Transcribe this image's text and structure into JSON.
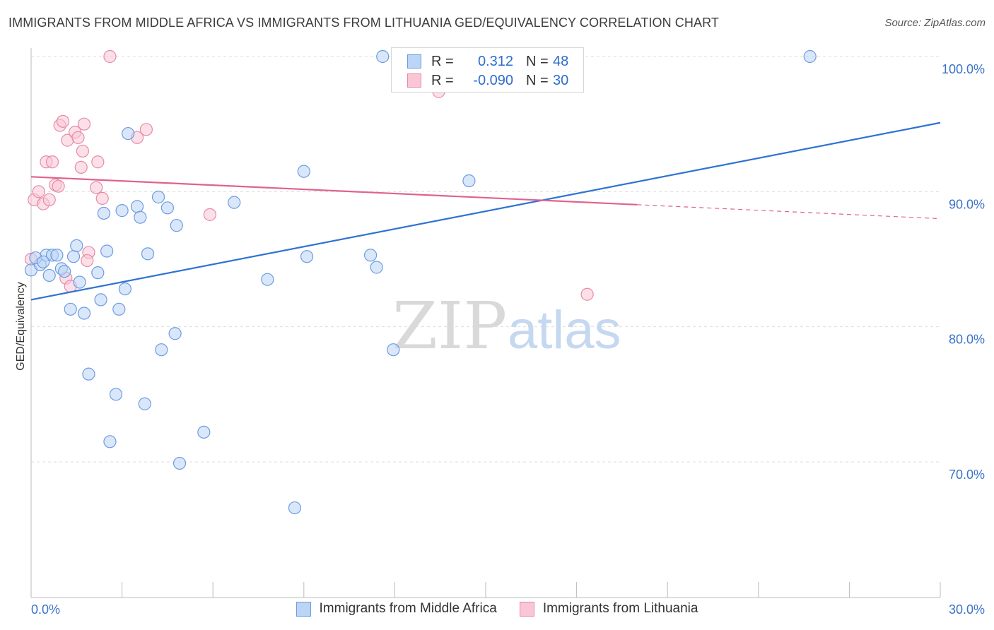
{
  "title": "IMMIGRANTS FROM MIDDLE AFRICA VS IMMIGRANTS FROM LITHUANIA GED/EQUIVALENCY CORRELATION CHART",
  "source": "Source: ZipAtlas.com",
  "watermark": {
    "zip": "ZIP",
    "atlas": "atlas"
  },
  "legend": {
    "series1": {
      "r_label": "R =",
      "r_value": "0.312",
      "n_label": "N =",
      "n_value": "48"
    },
    "series2": {
      "r_label": "R =",
      "r_value": "-0.090",
      "n_label": "N =",
      "n_value": "30"
    }
  },
  "colors": {
    "blue_fill": "#bcd4f5",
    "blue_stroke": "#6b9de0",
    "blue_line": "#2f72d3",
    "pink_fill": "#f9c6d6",
    "pink_stroke": "#e88aa8",
    "pink_line": "#e0628e",
    "tick_label": "#3a72c8",
    "grid": "#dddddd"
  },
  "chart_data": {
    "type": "scatter",
    "xlabel": "",
    "ylabel": "GED/Equivalency",
    "xlim": [
      0,
      30
    ],
    "ylim": [
      60,
      102
    ],
    "x_tick_labels": [
      {
        "value": 0,
        "label": "0.0%"
      },
      {
        "value": 30,
        "label": "30.0%"
      }
    ],
    "y_ticks": [
      {
        "value": 100,
        "label": "100.0%"
      },
      {
        "value": 90,
        "label": "90.0%"
      },
      {
        "value": 80,
        "label": "80.0%"
      },
      {
        "value": 70,
        "label": "70.0%"
      }
    ],
    "grid": true,
    "legend_position": "top-center",
    "series": [
      {
        "name": "Immigrants from Middle Africa",
        "color": "blue",
        "trend": {
          "x": [
            0,
            30
          ],
          "y": [
            82.0,
            95.1
          ],
          "dashed_from": null
        },
        "points": [
          [
            0.0,
            84.2
          ],
          [
            0.3,
            84.6
          ],
          [
            0.5,
            85.3
          ],
          [
            0.6,
            83.8
          ],
          [
            0.7,
            85.3
          ],
          [
            0.85,
            85.3
          ],
          [
            1.0,
            84.3
          ],
          [
            1.1,
            84.1
          ],
          [
            1.3,
            81.3
          ],
          [
            1.4,
            85.2
          ],
          [
            1.5,
            86.0
          ],
          [
            1.6,
            83.3
          ],
          [
            1.75,
            81.0
          ],
          [
            1.9,
            76.5
          ],
          [
            2.2,
            84.0
          ],
          [
            2.3,
            82.0
          ],
          [
            2.4,
            88.4
          ],
          [
            2.5,
            85.6
          ],
          [
            2.6,
            71.5
          ],
          [
            2.8,
            75.0
          ],
          [
            2.9,
            81.3
          ],
          [
            3.0,
            88.6
          ],
          [
            3.2,
            94.3
          ],
          [
            3.1,
            82.8
          ],
          [
            3.5,
            88.9
          ],
          [
            3.6,
            88.1
          ],
          [
            3.75,
            74.3
          ],
          [
            3.85,
            85.4
          ],
          [
            4.2,
            89.6
          ],
          [
            4.3,
            78.3
          ],
          [
            4.5,
            88.8
          ],
          [
            4.75,
            79.5
          ],
          [
            4.8,
            87.5
          ],
          [
            4.9,
            69.9
          ],
          [
            5.7,
            72.2
          ],
          [
            6.7,
            89.2
          ],
          [
            7.8,
            83.5
          ],
          [
            8.7,
            66.6
          ],
          [
            9.0,
            91.5
          ],
          [
            9.1,
            85.2
          ],
          [
            11.2,
            85.3
          ],
          [
            11.6,
            100.0
          ],
          [
            11.4,
            84.4
          ],
          [
            11.95,
            78.3
          ],
          [
            14.45,
            90.8
          ],
          [
            25.7,
            100.0
          ],
          [
            0.15,
            85.1
          ],
          [
            0.4,
            84.8
          ]
        ]
      },
      {
        "name": "Immigrants from Lithuania",
        "color": "pink",
        "trend": {
          "x": [
            0,
            30
          ],
          "y": [
            91.1,
            88.0
          ],
          "dashed_from": 20.0
        },
        "points": [
          [
            0.0,
            85.0
          ],
          [
            0.1,
            89.4
          ],
          [
            0.25,
            90.0
          ],
          [
            0.4,
            89.1
          ],
          [
            0.5,
            92.2
          ],
          [
            0.6,
            89.4
          ],
          [
            0.7,
            92.2
          ],
          [
            0.8,
            90.5
          ],
          [
            0.9,
            90.4
          ],
          [
            0.95,
            94.9
          ],
          [
            1.05,
            95.2
          ],
          [
            1.15,
            83.6
          ],
          [
            1.2,
            93.8
          ],
          [
            1.3,
            83.0
          ],
          [
            1.45,
            94.4
          ],
          [
            1.55,
            94.0
          ],
          [
            1.65,
            91.8
          ],
          [
            1.7,
            93.0
          ],
          [
            1.75,
            95.0
          ],
          [
            1.9,
            85.5
          ],
          [
            1.85,
            84.9
          ],
          [
            2.15,
            90.3
          ],
          [
            2.2,
            92.2
          ],
          [
            2.35,
            89.5
          ],
          [
            2.6,
            100.0
          ],
          [
            3.5,
            94.0
          ],
          [
            3.8,
            94.6
          ],
          [
            5.9,
            88.3
          ],
          [
            13.45,
            97.4
          ],
          [
            18.35,
            82.4
          ]
        ]
      }
    ]
  }
}
